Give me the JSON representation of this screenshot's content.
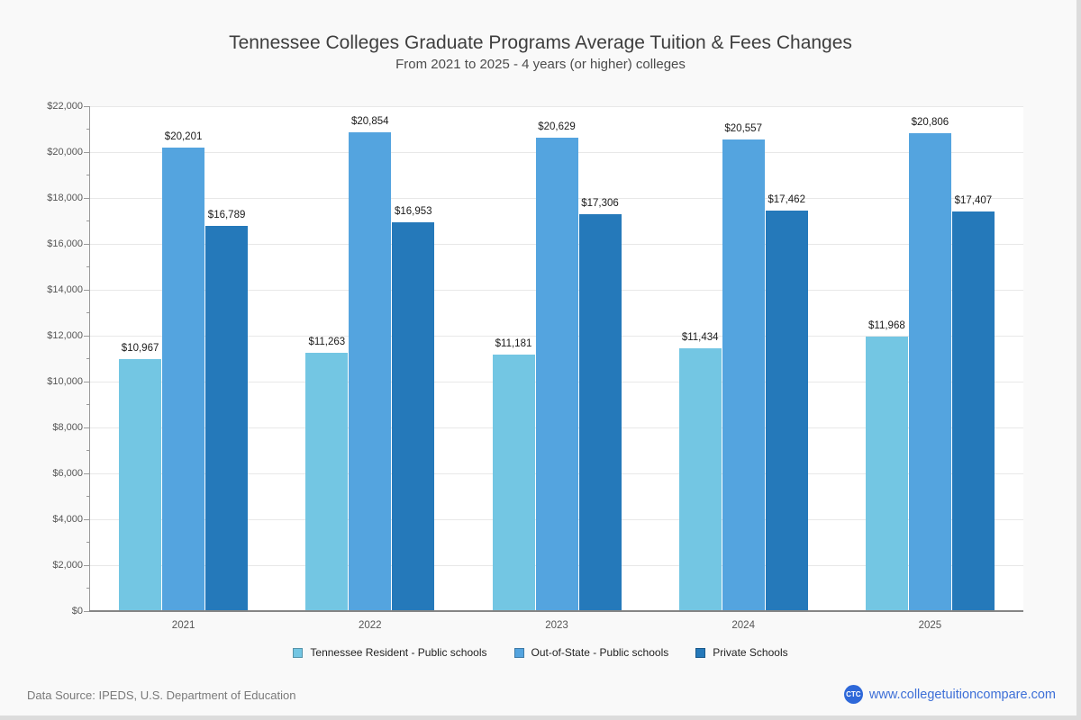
{
  "page": {
    "title": "Tennessee Colleges Graduate Programs Average Tuition & Fees Changes",
    "subtitle": "From 2021 to 2025 - 4 years (or higher) colleges",
    "footer": {
      "data_source": "Data Source: IPEDS, U.S. Department of Education",
      "logo_text": "CTC",
      "website": "www.collegetuitioncompare.com"
    }
  },
  "chart_data": {
    "type": "bar",
    "title": "Tennessee Colleges Graduate Programs Average Tuition & Fees Changes",
    "subtitle": "From 2021 to 2025 - 4 years (or higher) colleges",
    "categories": [
      "2021",
      "2022",
      "2023",
      "2024",
      "2025"
    ],
    "series": [
      {
        "name": "Tennessee Resident - Public schools",
        "color": "#73c6e3",
        "values": [
          10967,
          11263,
          11181,
          11434,
          11968
        ]
      },
      {
        "name": "Out-of-State - Public schools",
        "color": "#54a4df",
        "values": [
          20201,
          20854,
          20629,
          20557,
          20806
        ]
      },
      {
        "name": "Private Schools",
        "color": "#2579ba",
        "values": [
          16789,
          16953,
          17306,
          17462,
          17407
        ]
      }
    ],
    "xlabel": "",
    "ylabel": "",
    "ylim": [
      0,
      22000
    ],
    "y_major_step": 2000,
    "y_minor_step": 1000,
    "y_tick_prefix": "$",
    "grid": "horizontal-major",
    "legend_position": "bottom",
    "data_labels": "above-bars, $ thousands-separated"
  },
  "colors": {
    "page_bg": "#f9f9f9",
    "plot_bg": "#ffffff",
    "gridline": "#e8e8e8",
    "axis": "#9a9a9a",
    "title_text": "#3e3e3e",
    "tick_text": "#555555",
    "brand_blue": "#2e68d9",
    "link_blue": "#3d6fd7"
  }
}
